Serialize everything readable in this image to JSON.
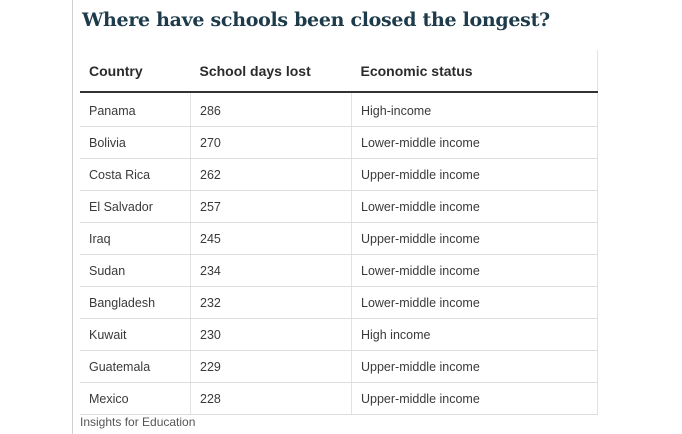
{
  "chart_data": {
    "type": "table",
    "title": "Where have schools been closed the longest?",
    "columns": [
      "Country",
      "School days lost",
      "Economic status"
    ],
    "rows": [
      [
        "Panama",
        "286",
        "High-income"
      ],
      [
        "Bolivia",
        "270",
        "Lower-middle income"
      ],
      [
        "Costa Rica",
        "262",
        "Upper-middle income"
      ],
      [
        "El Salvador",
        "257",
        "Lower-middle income"
      ],
      [
        "Iraq",
        "245",
        "Upper-middle income"
      ],
      [
        "Sudan",
        "234",
        "Lower-middle income"
      ],
      [
        "Bangladesh",
        "232",
        "Lower-middle income"
      ],
      [
        "Kuwait",
        "230",
        "High income"
      ],
      [
        "Guatemala",
        "229",
        "Upper-middle income"
      ],
      [
        "Mexico",
        "228",
        "Upper-middle income"
      ]
    ],
    "source": "Insights for Education"
  },
  "colors": {
    "title": "#1d3b4a",
    "header_rule": "#333333",
    "row_rule": "#dcdcdc"
  }
}
